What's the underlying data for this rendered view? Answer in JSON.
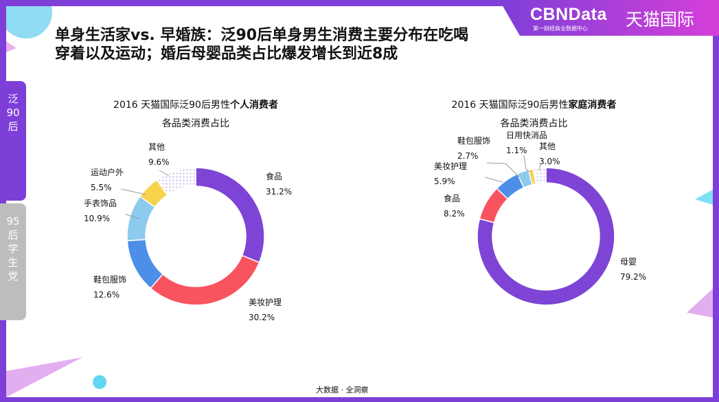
{
  "brand": {
    "cbn": "CBNData",
    "cbn_sub": "第一财经商业数据中心",
    "tmall": "天猫国际"
  },
  "title": {
    "line1": "单身生活家vs. 早婚族：泛90后单身男生消费主要分布在吃喝",
    "line2": "穿着以及运动；婚后母婴品类占比爆发增长到近8成"
  },
  "side_tabs": [
    {
      "label": "泛90后",
      "active": true
    },
    {
      "label": "95后学生党",
      "active": false
    }
  ],
  "footer": "大数据 · 全洞察",
  "colors": {
    "accent": "#7e3fd8",
    "tab_inactive": "#bdbdbd"
  },
  "chart_data": [
    {
      "type": "pie",
      "title_line1_prefix": "2016 天猫国际泛90后男性",
      "title_line1_bold": "个人消费者",
      "title_line2": "各品类消费占比",
      "categories": [
        "食品",
        "美妆护理",
        "鞋包服饰",
        "手表饰品",
        "运动户外",
        "其他"
      ],
      "values": [
        31.2,
        30.2,
        12.6,
        10.9,
        5.5,
        9.6
      ],
      "labels": [
        "31.2%",
        "30.2%",
        "12.6%",
        "10.9%",
        "5.5%",
        "9.6%"
      ],
      "colors": [
        "#7e44d6",
        "#f8545f",
        "#4d8ee8",
        "#8ccaee",
        "#f7d34d",
        "#dcd6f0"
      ]
    },
    {
      "type": "pie",
      "title_line1_prefix": "2016 天猫国际泛90后男性",
      "title_line1_bold": "家庭消费者",
      "title_line2": "各品类消费占比",
      "categories": [
        "母婴",
        "食品",
        "美妆护理",
        "鞋包服饰",
        "日用快消品",
        "其他"
      ],
      "values": [
        79.2,
        8.2,
        5.9,
        2.7,
        1.1,
        3.0
      ],
      "labels": [
        "79.2%",
        "8.2%",
        "5.9%",
        "2.7%",
        "1.1%",
        "3.0%"
      ],
      "colors": [
        "#7e44d6",
        "#f8545f",
        "#4d8ee8",
        "#8ccaee",
        "#f7d34d",
        "#dcd6f0"
      ]
    }
  ]
}
